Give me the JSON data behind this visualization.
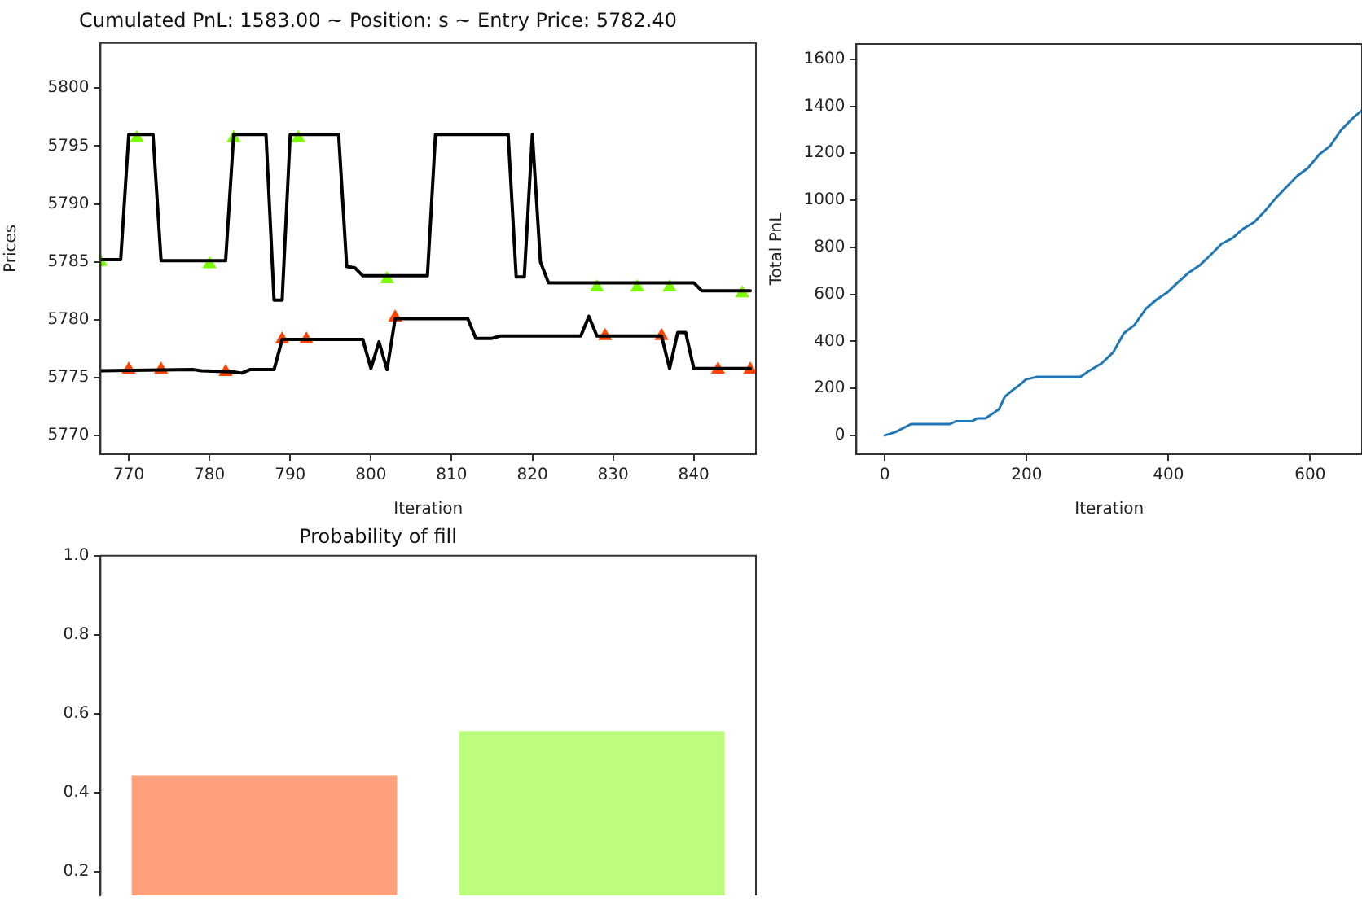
{
  "chart_data": [
    {
      "type": "line",
      "title": "Cumulated PnL: 1583.00 ~ Position: s ~ Entry Price: 5782.40",
      "xlabel": "Iteration",
      "ylabel": "Prices",
      "xlim": [
        766.5,
        847.7
      ],
      "xticks": [
        770,
        780,
        790,
        800,
        810,
        820,
        830,
        840
      ],
      "ylim": [
        5768.4,
        5803.9
      ],
      "yticks": [
        5770,
        5775,
        5780,
        5785,
        5790,
        5795,
        5800
      ],
      "grid": false,
      "legend": false,
      "series": [
        {
          "type": "line",
          "color": "#000000",
          "marker": "none",
          "x": [
            766.5,
            769,
            770,
            773,
            774,
            782,
            783,
            787,
            788,
            789,
            790,
            796,
            797,
            798,
            799,
            807,
            808,
            817,
            818,
            819,
            820,
            821,
            822,
            840,
            841,
            847
          ],
          "values": [
            5785.2,
            5785.2,
            5796,
            5796,
            5785.1,
            5785.1,
            5796,
            5796,
            5781.7,
            5781.7,
            5796,
            5796,
            5784.6,
            5784.5,
            5783.8,
            5783.8,
            5796,
            5796,
            5783.7,
            5783.7,
            5796,
            5785,
            5783.2,
            5783.2,
            5782.5,
            5782.5
          ]
        },
        {
          "type": "line",
          "color": "#000000",
          "marker": "none",
          "x": [
            766.5,
            778,
            779,
            783,
            784,
            785,
            788,
            789,
            799,
            800,
            801,
            802,
            803,
            812,
            813,
            815,
            816,
            826,
            827,
            828,
            836,
            837,
            838,
            839,
            840,
            847
          ],
          "values": [
            5775.6,
            5775.7,
            5775.6,
            5775.5,
            5775.4,
            5775.7,
            5775.7,
            5778.3,
            5778.3,
            5775.8,
            5778.1,
            5775.7,
            5780.1,
            5780.1,
            5778.4,
            5778.4,
            5778.6,
            5778.6,
            5780.3,
            5778.6,
            5778.6,
            5775.8,
            5778.9,
            5778.9,
            5775.8,
            5775.8
          ]
        },
        {
          "type": "scatter",
          "color": "#7cfc00",
          "marker": "triangle",
          "x": [
            766.5,
            771,
            780,
            783,
            791,
            802,
            828,
            833,
            837,
            846
          ],
          "values": [
            5785,
            5795.7,
            5784.8,
            5795.7,
            5795.7,
            5783.5,
            5782.8,
            5782.8,
            5782.8,
            5782.3
          ]
        },
        {
          "type": "scatter",
          "color": "#ff4500",
          "marker": "triangle",
          "x": [
            770,
            774,
            782,
            789,
            792,
            803,
            829,
            836,
            843,
            847
          ],
          "values": [
            5775.7,
            5775.7,
            5775.5,
            5778.3,
            5778.3,
            5780.2,
            5778.6,
            5778.6,
            5775.7,
            5775.7
          ]
        }
      ]
    },
    {
      "type": "line",
      "xlabel": "Iteration",
      "ylabel": "Total PnL",
      "xlim": [
        -40,
        673
      ],
      "xticks": [
        0,
        200,
        400,
        600
      ],
      "ylim": [
        -80,
        1665
      ],
      "yticks": [
        0,
        200,
        400,
        600,
        800,
        1000,
        1200,
        1400,
        1600
      ],
      "grid": false,
      "legend": false,
      "series": [
        {
          "color": "#1f77b4",
          "marker": "none",
          "x": [
            0,
            15,
            37,
            92,
            100,
            123,
            130,
            142,
            161,
            169,
            180,
            192,
            199,
            215,
            276,
            287,
            306,
            322,
            337,
            352,
            368,
            383,
            398,
            414,
            429,
            444,
            460,
            475,
            490,
            506,
            521,
            536,
            552,
            567,
            582,
            597,
            613,
            628,
            644,
            659,
            672
          ],
          "values": [
            0,
            14,
            48,
            48,
            60,
            60,
            72,
            72,
            111,
            164,
            192,
            219,
            238,
            249,
            249,
            272,
            307,
            353,
            434,
            469,
            538,
            577,
            607,
            653,
            693,
            723,
            769,
            815,
            838,
            880,
            907,
            954,
            1011,
            1058,
            1104,
            1138,
            1196,
            1231,
            1300,
            1346,
            1381
          ]
        }
      ]
    },
    {
      "type": "bar",
      "title": "Probability of fill",
      "categories": [
        null,
        null
      ],
      "values": [
        0.444,
        0.556
      ],
      "colors": [
        "#ffa07a",
        "#bdfd7e"
      ],
      "ylim": [
        0.14,
        1
      ],
      "yticks": [
        0.2,
        0.4,
        0.6,
        0.8,
        {
          "value": 1,
          "label": "1.0"
        }
      ],
      "grid": false,
      "legend": false
    }
  ]
}
